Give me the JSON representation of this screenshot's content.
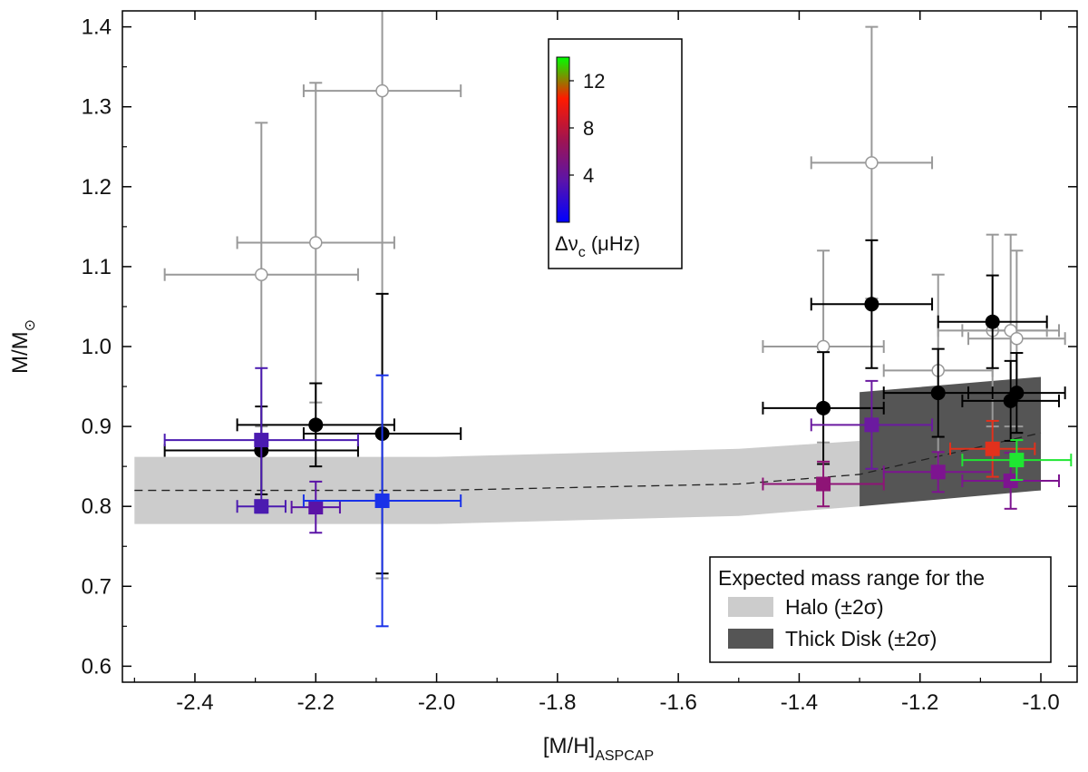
{
  "chart_data": {
    "type": "scatter",
    "xlabel": {
      "main": "[M/H]",
      "sub": "ASPCAP"
    },
    "ylabel": {
      "main": "M/M",
      "sub": "⊙"
    },
    "xlim": [
      -2.52,
      -0.94
    ],
    "ylim": [
      0.58,
      1.42
    ],
    "x_ticks": [
      -2.4,
      -2.2,
      -2.0,
      -1.8,
      -1.6,
      -1.4,
      -1.2,
      -1.0
    ],
    "x_tick_labels": [
      "-2.4",
      "-2.2",
      "-2.0",
      "-1.8",
      "-1.6",
      "-1.4",
      "-1.2",
      "-1.0"
    ],
    "y_ticks": [
      0.6,
      0.7,
      0.8,
      0.9,
      1.0,
      1.1,
      1.2,
      1.3,
      1.4
    ],
    "y_tick_labels": [
      "0.6",
      "0.7",
      "0.8",
      "0.9",
      "1.0",
      "1.1",
      "1.2",
      "1.3",
      "1.4"
    ],
    "grid": false,
    "halo_band": {
      "upper": [
        [
          -2.5,
          0.862
        ],
        [
          -2.0,
          0.862
        ],
        [
          -1.5,
          0.872
        ],
        [
          -1.3,
          0.882
        ]
      ],
      "lower": [
        [
          -2.5,
          0.778
        ],
        [
          -2.0,
          0.778
        ],
        [
          -1.5,
          0.788
        ],
        [
          -1.3,
          0.8
        ]
      ],
      "color": "#cccccc"
    },
    "thick_disk_band": {
      "polygon": [
        [
          -1.3,
          0.943
        ],
        [
          -1.0,
          0.962
        ],
        [
          -1.0,
          0.82
        ],
        [
          -1.3,
          0.8
        ]
      ],
      "color": "#555555"
    },
    "expected_line": [
      [
        -2.5,
        0.82
      ],
      [
        -2.0,
        0.82
      ],
      [
        -1.5,
        0.828
      ],
      [
        -1.3,
        0.84
      ],
      [
        -1.0,
        0.892
      ]
    ],
    "series": [
      {
        "marker": "open-circle",
        "color": "#999999",
        "points": [
          {
            "x": -2.29,
            "y": 1.09,
            "xerr": 0.16,
            "yerr_up": 0.19,
            "yerr_down": 0.19
          },
          {
            "x": -2.2,
            "y": 1.13,
            "xerr": 0.13,
            "yerr_up": 0.2,
            "yerr_down": 0.2
          },
          {
            "x": -2.09,
            "y": 1.32,
            "xerr": 0.13,
            "yerr_up": 0.2,
            "yerr_down": 0.61
          },
          {
            "x": -1.36,
            "y": 1.0,
            "xerr": 0.1,
            "yerr_up": 0.12,
            "yerr_down": 0.12
          },
          {
            "x": -1.28,
            "y": 1.23,
            "xerr": 0.1,
            "yerr_up": 0.17,
            "yerr_down": 0.17
          },
          {
            "x": -1.17,
            "y": 0.97,
            "xerr": 0.09,
            "yerr_up": 0.12,
            "yerr_down": 0.12
          },
          {
            "x": -1.08,
            "y": 1.02,
            "xerr": 0.09,
            "yerr_up": 0.12,
            "yerr_down": 0.12
          },
          {
            "x": -1.05,
            "y": 1.02,
            "xerr": 0.08,
            "yerr_up": 0.12,
            "yerr_down": 0.12
          },
          {
            "x": -1.04,
            "y": 1.01,
            "xerr": 0.08,
            "yerr_up": 0.11,
            "yerr_down": 0.11
          }
        ]
      },
      {
        "marker": "filled-circle",
        "color": "#000000",
        "points": [
          {
            "x": -2.29,
            "y": 0.87,
            "xerr": 0.16,
            "yerr_up": 0.055,
            "yerr_down": 0.055
          },
          {
            "x": -2.2,
            "y": 0.902,
            "xerr": 0.13,
            "yerr_up": 0.052,
            "yerr_down": 0.052
          },
          {
            "x": -2.09,
            "y": 0.891,
            "xerr": 0.13,
            "yerr_up": 0.175,
            "yerr_down": 0.175
          },
          {
            "x": -1.36,
            "y": 0.923,
            "xerr": 0.1,
            "yerr_up": 0.07,
            "yerr_down": 0.07
          },
          {
            "x": -1.28,
            "y": 1.053,
            "xerr": 0.1,
            "yerr_up": 0.08,
            "yerr_down": 0.08
          },
          {
            "x": -1.17,
            "y": 0.942,
            "xerr": 0.09,
            "yerr_up": 0.055,
            "yerr_down": 0.055
          },
          {
            "x": -1.08,
            "y": 1.031,
            "xerr": 0.09,
            "yerr_up": 0.058,
            "yerr_down": 0.058
          },
          {
            "x": -1.05,
            "y": 0.932,
            "xerr": 0.08,
            "yerr_up": 0.05,
            "yerr_down": 0.05
          },
          {
            "x": -1.04,
            "y": 0.942,
            "xerr": 0.08,
            "yerr_up": 0.05,
            "yerr_down": 0.05
          }
        ]
      },
      {
        "marker": "filled-square",
        "color_by": "delta_nu_c",
        "points": [
          {
            "x": -2.29,
            "y": 0.883,
            "xerr": 0.16,
            "yerr_up": 0.09,
            "yerr_down": 0.09,
            "color": "#4b1bb0"
          },
          {
            "x": -2.29,
            "y": 0.8,
            "xerr": 0.04,
            "yerr_up": 0.005,
            "yerr_down": 0.008,
            "color": "#4b1bb0"
          },
          {
            "x": -2.2,
            "y": 0.799,
            "xerr": 0.04,
            "yerr_up": 0.032,
            "yerr_down": 0.032,
            "color": "#5a13a6"
          },
          {
            "x": -2.09,
            "y": 0.807,
            "xerr": 0.13,
            "yerr_up": 0.157,
            "yerr_down": 0.157,
            "color": "#1a32e8"
          },
          {
            "x": -1.36,
            "y": 0.828,
            "xerr": 0.1,
            "yerr_up": 0.028,
            "yerr_down": 0.028,
            "color": "#8e1476"
          },
          {
            "x": -1.28,
            "y": 0.902,
            "xerr": 0.1,
            "yerr_up": 0.055,
            "yerr_down": 0.055,
            "color": "#6b1aa0"
          },
          {
            "x": -1.17,
            "y": 0.843,
            "xerr": 0.09,
            "yerr_up": 0.025,
            "yerr_down": 0.025,
            "color": "#7d1490"
          },
          {
            "x": -1.08,
            "y": 0.872,
            "xerr": 0.07,
            "yerr_up": 0.035,
            "yerr_down": 0.035,
            "color": "#e2311c"
          },
          {
            "x": -1.05,
            "y": 0.832,
            "xerr": 0.08,
            "yerr_up": 0.035,
            "yerr_down": 0.035,
            "color": "#7d1490"
          },
          {
            "x": -1.04,
            "y": 0.858,
            "xerr": 0.09,
            "yerr_up": 0.025,
            "yerr_down": 0.025,
            "color": "#1fe632"
          }
        ]
      }
    ],
    "colorbar": {
      "label_main": "Δν",
      "label_sub": "c",
      "label_unit": " (μHz)",
      "range": [
        0,
        14
      ],
      "ticks": [
        4,
        8,
        12
      ],
      "tick_labels": [
        "4",
        "8",
        "12"
      ],
      "stops": [
        "#0000ff",
        "#5a14aa",
        "#a01450",
        "#ff1a00",
        "#00ff00"
      ],
      "placement": "top-center"
    },
    "legend": {
      "placement": "bottom-right",
      "title": "Expected mass range for the",
      "entries": [
        {
          "label": "Halo (±2σ)",
          "color": "#cccccc"
        },
        {
          "label": "Thick Disk (±2σ)",
          "color": "#555555"
        }
      ]
    }
  }
}
